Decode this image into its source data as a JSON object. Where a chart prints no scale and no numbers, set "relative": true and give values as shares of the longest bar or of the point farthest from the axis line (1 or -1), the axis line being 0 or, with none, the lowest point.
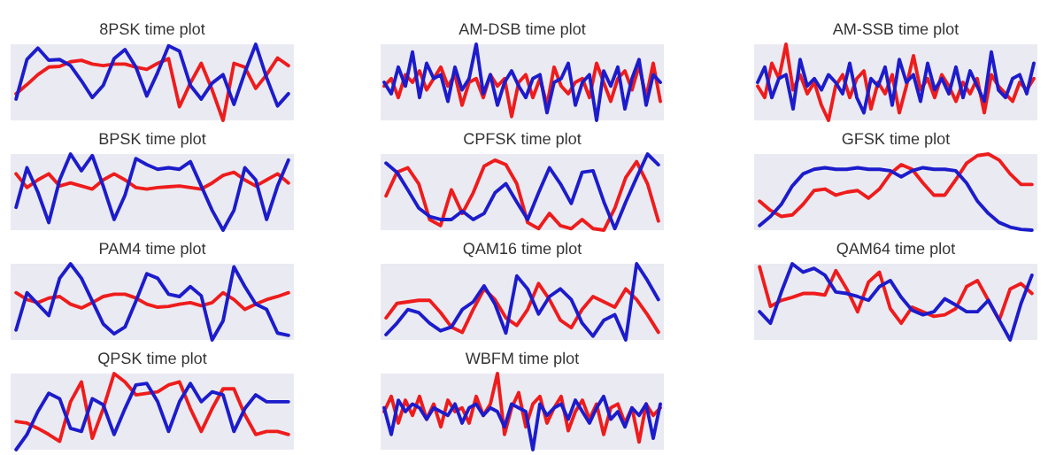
{
  "chart_data": [
    {
      "type": "line",
      "title": "8PSK time plot",
      "relative": true,
      "categories": [
        null,
        null,
        null,
        null,
        null,
        null,
        null,
        null,
        null,
        null,
        null,
        null,
        null,
        null,
        null,
        null,
        null,
        null,
        null,
        null,
        null,
        null,
        null,
        null,
        null,
        null
      ],
      "series": [
        {
          "color": "#ee1c1c",
          "values": [
            0.35,
            0.47,
            0.6,
            0.7,
            0.71,
            0.77,
            0.79,
            0.74,
            0.72,
            0.74,
            0.74,
            0.7,
            0.67,
            0.75,
            0.81,
            0.18,
            0.49,
            0.75,
            0.4,
            0.0,
            0.75,
            0.7,
            0.42,
            0.6,
            0.82,
            0.72
          ]
        },
        {
          "color": "#1c1ccc",
          "values": [
            0.28,
            0.8,
            0.95,
            0.79,
            0.8,
            0.72,
            0.52,
            0.3,
            0.46,
            0.81,
            0.93,
            0.7,
            0.32,
            0.63,
            0.98,
            0.91,
            0.46,
            0.28,
            0.49,
            0.6,
            0.21,
            0.63,
            1.0,
            0.56,
            0.19,
            0.35
          ]
        }
      ]
    },
    {
      "type": "line",
      "title": "AM-DSB time plot",
      "relative": true,
      "categories": [
        null,
        null,
        null,
        null,
        null,
        null,
        null,
        null,
        null,
        null,
        null,
        null,
        null,
        null,
        null,
        null,
        null,
        null,
        null,
        null,
        null,
        null,
        null,
        null,
        null,
        null,
        null,
        null,
        null,
        null,
        null,
        null,
        null,
        null,
        null,
        null,
        null,
        null,
        null,
        null
      ],
      "series": [
        {
          "color": "#ee1c1c",
          "values": [
            0.45,
            0.55,
            0.3,
            0.6,
            0.5,
            0.65,
            0.4,
            0.55,
            0.7,
            0.45,
            0.6,
            0.2,
            0.5,
            0.55,
            0.3,
            0.6,
            0.45,
            0.55,
            0.05,
            0.5,
            0.6,
            0.3,
            0.55,
            0.2,
            0.7,
            0.45,
            0.35,
            0.5,
            0.55,
            0.3,
            0.75,
            0.5,
            0.25,
            0.55,
            0.65,
            0.4,
            0.72,
            0.3,
            0.75,
            0.25
          ]
        },
        {
          "color": "#1c1ccc",
          "values": [
            0.5,
            0.35,
            0.7,
            0.45,
            0.9,
            0.3,
            0.75,
            0.55,
            0.6,
            0.25,
            0.7,
            0.4,
            0.55,
            1.0,
            0.35,
            0.6,
            0.2,
            0.5,
            0.65,
            0.45,
            0.3,
            0.55,
            0.6,
            0.1,
            0.5,
            0.55,
            0.75,
            0.2,
            0.5,
            0.6,
            0.0,
            0.65,
            0.45,
            0.7,
            0.15,
            0.55,
            0.8,
            0.2,
            0.6,
            0.5
          ]
        }
      ]
    },
    {
      "type": "line",
      "title": "AM-SSB time plot",
      "relative": true,
      "categories": [
        null,
        null,
        null,
        null,
        null,
        null,
        null,
        null,
        null,
        null,
        null,
        null,
        null,
        null,
        null,
        null,
        null,
        null,
        null,
        null,
        null,
        null,
        null,
        null,
        null,
        null,
        null,
        null,
        null,
        null,
        null,
        null,
        null,
        null,
        null,
        null,
        null,
        null,
        null,
        null
      ],
      "series": [
        {
          "color": "#ee1c1c",
          "values": [
            0.45,
            0.3,
            0.75,
            0.55,
            1.0,
            0.4,
            0.6,
            0.35,
            0.5,
            0.2,
            0.0,
            0.45,
            0.6,
            0.3,
            0.55,
            0.65,
            0.15,
            0.5,
            0.35,
            0.6,
            0.1,
            0.45,
            0.85,
            0.4,
            0.55,
            0.3,
            0.6,
            0.45,
            0.25,
            0.5,
            0.35,
            0.55,
            0.1,
            0.6,
            0.45,
            0.35,
            0.25,
            0.5,
            0.4,
            0.55
          ]
        },
        {
          "color": "#1c1ccc",
          "values": [
            0.5,
            0.7,
            0.3,
            0.55,
            0.6,
            0.15,
            0.8,
            0.45,
            0.55,
            0.4,
            0.6,
            0.5,
            0.35,
            0.75,
            0.3,
            0.1,
            0.55,
            0.45,
            0.7,
            0.2,
            0.8,
            0.5,
            0.6,
            0.25,
            0.75,
            0.4,
            0.55,
            0.35,
            0.7,
            0.3,
            0.65,
            0.45,
            0.25,
            0.9,
            0.4,
            0.3,
            0.55,
            0.6,
            0.35,
            0.75
          ]
        }
      ]
    },
    {
      "type": "line",
      "title": "BPSK time plot",
      "relative": true,
      "categories": [
        null,
        null,
        null,
        null,
        null,
        null,
        null,
        null,
        null,
        null,
        null,
        null,
        null,
        null,
        null,
        null,
        null,
        null,
        null,
        null,
        null,
        null,
        null,
        null,
        null,
        null
      ],
      "series": [
        {
          "color": "#ee1c1c",
          "values": [
            0.74,
            0.56,
            0.66,
            0.74,
            0.58,
            0.62,
            0.58,
            0.54,
            0.66,
            0.74,
            0.66,
            0.56,
            0.54,
            0.56,
            0.57,
            0.58,
            0.56,
            0.54,
            0.62,
            0.72,
            0.76,
            0.66,
            0.58,
            0.66,
            0.74,
            0.62
          ]
        },
        {
          "color": "#1c1ccc",
          "values": [
            0.3,
            0.82,
            0.5,
            0.1,
            0.66,
            1.0,
            0.78,
            0.98,
            0.58,
            0.14,
            0.46,
            0.94,
            0.86,
            0.8,
            0.82,
            0.8,
            0.9,
            0.58,
            0.26,
            0.0,
            0.26,
            0.82,
            0.66,
            0.14,
            0.58,
            0.92
          ]
        }
      ]
    },
    {
      "type": "line",
      "title": "CPFSK time plot",
      "relative": true,
      "categories": [
        null,
        null,
        null,
        null,
        null,
        null,
        null,
        null,
        null,
        null,
        null,
        null,
        null,
        null,
        null,
        null,
        null,
        null,
        null,
        null,
        null,
        null,
        null,
        null,
        null,
        null
      ],
      "series": [
        {
          "color": "#ee1c1c",
          "values": [
            0.45,
            0.76,
            0.82,
            0.61,
            0.14,
            0.06,
            0.53,
            0.22,
            0.49,
            0.84,
            0.92,
            0.86,
            0.61,
            0.1,
            0.02,
            0.22,
            0.06,
            0.02,
            0.14,
            0.02,
            0.0,
            0.29,
            0.69,
            0.9,
            0.61,
            0.12
          ]
        },
        {
          "color": "#1c1ccc",
          "values": [
            0.88,
            0.76,
            0.53,
            0.29,
            0.18,
            0.14,
            0.14,
            0.25,
            0.14,
            0.22,
            0.49,
            0.61,
            0.37,
            0.14,
            0.49,
            0.82,
            0.61,
            0.35,
            0.76,
            0.78,
            0.37,
            0.02,
            0.37,
            0.69,
            1.0,
            0.86
          ]
        }
      ]
    },
    {
      "type": "line",
      "title": "GFSK time plot",
      "relative": true,
      "categories": [
        null,
        null,
        null,
        null,
        null,
        null,
        null,
        null,
        null,
        null,
        null,
        null,
        null,
        null,
        null,
        null,
        null,
        null,
        null,
        null,
        null,
        null,
        null,
        null,
        null,
        null
      ],
      "series": [
        {
          "color": "#ee1c1c",
          "values": [
            0.38,
            0.26,
            0.18,
            0.2,
            0.34,
            0.52,
            0.54,
            0.46,
            0.5,
            0.52,
            0.42,
            0.54,
            0.74,
            0.86,
            0.8,
            0.62,
            0.46,
            0.46,
            0.66,
            0.88,
            0.98,
            1.0,
            0.92,
            0.74,
            0.6,
            0.6
          ]
        },
        {
          "color": "#1c1ccc",
          "values": [
            0.06,
            0.18,
            0.34,
            0.58,
            0.74,
            0.8,
            0.82,
            0.8,
            0.8,
            0.82,
            0.8,
            0.8,
            0.78,
            0.7,
            0.78,
            0.82,
            0.8,
            0.8,
            0.78,
            0.62,
            0.38,
            0.22,
            0.1,
            0.04,
            0.01,
            0.0
          ]
        }
      ]
    },
    {
      "type": "line",
      "title": "PAM4 time plot",
      "relative": true,
      "categories": [
        null,
        null,
        null,
        null,
        null,
        null,
        null,
        null,
        null,
        null,
        null,
        null,
        null,
        null,
        null,
        null,
        null,
        null,
        null,
        null,
        null,
        null,
        null,
        null,
        null,
        null
      ],
      "series": [
        {
          "color": "#ee1c1c",
          "values": [
            0.62,
            0.53,
            0.49,
            0.55,
            0.57,
            0.47,
            0.42,
            0.49,
            0.57,
            0.6,
            0.6,
            0.55,
            0.47,
            0.43,
            0.44,
            0.47,
            0.49,
            0.45,
            0.49,
            0.62,
            0.53,
            0.4,
            0.47,
            0.53,
            0.57,
            0.62
          ]
        },
        {
          "color": "#1c1ccc",
          "values": [
            0.13,
            0.62,
            0.47,
            0.32,
            0.81,
            1.0,
            0.81,
            0.51,
            0.21,
            0.08,
            0.17,
            0.51,
            0.87,
            0.81,
            0.6,
            0.57,
            0.7,
            0.58,
            0.0,
            0.25,
            0.96,
            0.7,
            0.47,
            0.4,
            0.09,
            0.06
          ]
        }
      ]
    },
    {
      "type": "line",
      "title": "QAM16 time plot",
      "relative": true,
      "categories": [
        null,
        null,
        null,
        null,
        null,
        null,
        null,
        null,
        null,
        null,
        null,
        null,
        null,
        null,
        null,
        null,
        null,
        null,
        null,
        null,
        null,
        null,
        null,
        null,
        null,
        null
      ],
      "series": [
        {
          "color": "#ee1c1c",
          "values": [
            0.29,
            0.48,
            0.5,
            0.52,
            0.52,
            0.36,
            0.17,
            0.1,
            0.4,
            0.67,
            0.53,
            0.29,
            0.19,
            0.4,
            0.74,
            0.53,
            0.26,
            0.16,
            0.4,
            0.57,
            0.5,
            0.43,
            0.67,
            0.53,
            0.33,
            0.1
          ]
        },
        {
          "color": "#1c1ccc",
          "values": [
            0.07,
            0.22,
            0.4,
            0.36,
            0.22,
            0.12,
            0.17,
            0.4,
            0.5,
            0.71,
            0.47,
            0.09,
            0.84,
            0.67,
            0.34,
            0.57,
            0.67,
            0.53,
            0.22,
            0.05,
            0.26,
            0.33,
            0.0,
            1.0,
            0.78,
            0.53
          ]
        }
      ]
    },
    {
      "type": "line",
      "title": "QAM64 time plot",
      "relative": true,
      "categories": [
        null,
        null,
        null,
        null,
        null,
        null,
        null,
        null,
        null,
        null,
        null,
        null,
        null,
        null,
        null,
        null,
        null,
        null,
        null,
        null,
        null,
        null,
        null,
        null,
        null,
        null
      ],
      "series": [
        {
          "color": "#ee1c1c",
          "values": [
            0.96,
            0.44,
            0.52,
            0.56,
            0.61,
            0.61,
            0.59,
            0.91,
            0.67,
            0.37,
            0.76,
            0.89,
            0.41,
            0.22,
            0.43,
            0.37,
            0.31,
            0.33,
            0.41,
            0.7,
            0.78,
            0.52,
            0.26,
            0.67,
            0.74,
            0.61
          ]
        },
        {
          "color": "#1c1ccc",
          "values": [
            0.37,
            0.22,
            0.63,
            1.0,
            0.89,
            0.94,
            0.85,
            0.63,
            0.61,
            0.57,
            0.52,
            0.7,
            0.78,
            0.56,
            0.39,
            0.33,
            0.37,
            0.54,
            0.46,
            0.37,
            0.37,
            0.52,
            0.26,
            0.0,
            0.48,
            0.85
          ]
        }
      ]
    },
    {
      "type": "line",
      "title": "QPSK time plot",
      "relative": true,
      "categories": [
        null,
        null,
        null,
        null,
        null,
        null,
        null,
        null,
        null,
        null,
        null,
        null,
        null,
        null,
        null,
        null,
        null,
        null,
        null,
        null,
        null,
        null,
        null,
        null,
        null,
        null
      ],
      "series": [
        {
          "color": "#ee1c1c",
          "values": [
            0.37,
            0.35,
            0.28,
            0.2,
            0.11,
            0.63,
            0.89,
            0.15,
            0.54,
            1.0,
            0.89,
            0.72,
            0.74,
            0.76,
            0.85,
            0.89,
            0.54,
            0.24,
            0.54,
            0.8,
            0.8,
            0.46,
            0.2,
            0.24,
            0.24,
            0.2
          ]
        },
        {
          "color": "#1c1ccc",
          "values": [
            0.0,
            0.2,
            0.5,
            0.74,
            0.67,
            0.28,
            0.24,
            0.67,
            0.59,
            0.2,
            0.54,
            0.85,
            0.87,
            0.63,
            0.24,
            0.63,
            0.87,
            0.63,
            0.76,
            0.72,
            0.24,
            0.54,
            0.72,
            0.63,
            0.63,
            0.63
          ]
        }
      ]
    },
    {
      "type": "line",
      "title": "WBFM time plot",
      "relative": true,
      "categories": [
        null,
        null,
        null,
        null,
        null,
        null,
        null,
        null,
        null,
        null,
        null,
        null,
        null,
        null,
        null,
        null,
        null,
        null,
        null,
        null,
        null,
        null,
        null,
        null,
        null,
        null,
        null,
        null,
        null,
        null,
        null,
        null,
        null,
        null,
        null,
        null,
        null,
        null,
        null,
        null
      ],
      "series": [
        {
          "color": "#ee1c1c",
          "values": [
            0.5,
            0.7,
            0.35,
            0.65,
            0.45,
            0.7,
            0.4,
            0.6,
            0.3,
            0.65,
            0.5,
            0.55,
            0.35,
            0.7,
            0.45,
            0.6,
            1.0,
            0.2,
            0.55,
            0.75,
            0.3,
            0.6,
            0.7,
            0.35,
            0.55,
            0.7,
            0.25,
            0.5,
            0.65,
            0.4,
            0.6,
            0.2,
            0.55,
            0.6,
            0.35,
            0.55,
            0.1,
            0.6,
            0.45,
            0.55
          ]
        },
        {
          "color": "#1c1ccc",
          "values": [
            0.55,
            0.2,
            0.65,
            0.5,
            0.6,
            0.55,
            0.4,
            0.55,
            0.5,
            0.45,
            0.6,
            0.35,
            0.55,
            0.6,
            0.45,
            0.55,
            0.5,
            0.3,
            0.6,
            0.55,
            0.5,
            0.0,
            0.6,
            0.45,
            0.55,
            0.6,
            0.4,
            0.65,
            0.5,
            0.35,
            0.55,
            0.7,
            0.4,
            0.5,
            0.3,
            0.55,
            0.45,
            0.6,
            0.15,
            0.6
          ]
        }
      ]
    }
  ]
}
